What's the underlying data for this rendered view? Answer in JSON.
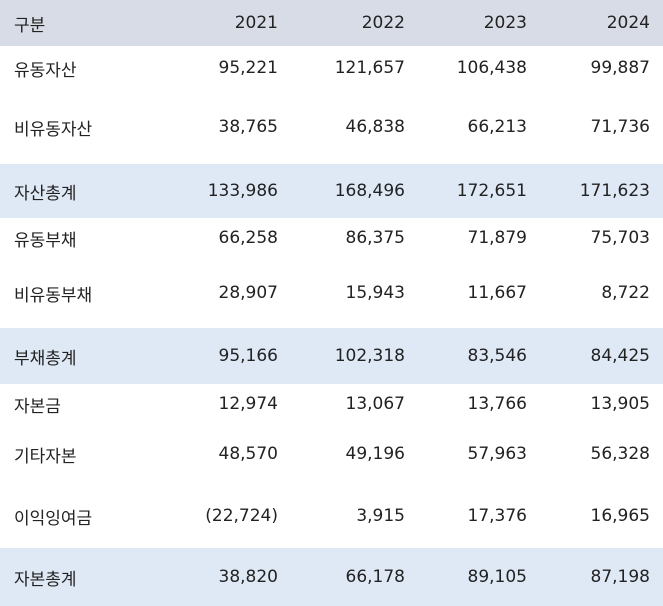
{
  "table": {
    "header": [
      "구분",
      "2021",
      "2022",
      "2023",
      "2024"
    ],
    "rows": [
      {
        "label": "유동자산",
        "values": [
          "95,221",
          "121,657",
          "106,438",
          "99,887"
        ],
        "total": false
      },
      {
        "label": "비유동자산",
        "values": [
          "38,765",
          "46,838",
          "66,213",
          "71,736"
        ],
        "total": false
      },
      {
        "label": "자산총계",
        "values": [
          "133,986",
          "168,496",
          "172,651",
          "171,623"
        ],
        "total": true
      },
      {
        "label": "유동부채",
        "values": [
          "66,258",
          "86,375",
          "71,879",
          "75,703"
        ],
        "total": false
      },
      {
        "label": "비유동부채",
        "values": [
          "28,907",
          "15,943",
          "11,667",
          "8,722"
        ],
        "total": false
      },
      {
        "label": "부채총계",
        "values": [
          "95,166",
          "102,318",
          "83,546",
          "84,425"
        ],
        "total": true
      },
      {
        "label": "자본금",
        "values": [
          "12,974",
          "13,067",
          "13,766",
          "13,905"
        ],
        "total": false
      },
      {
        "label": "기타자본",
        "values": [
          "48,570",
          "49,196",
          "57,963",
          "56,328"
        ],
        "total": false
      },
      {
        "label": "이익잉여금",
        "values": [
          "(22,724)",
          "3,915",
          "17,376",
          "16,965"
        ],
        "total": false
      },
      {
        "label": "자본총계",
        "values": [
          "38,820",
          "66,178",
          "89,105",
          "87,198"
        ],
        "total": true
      }
    ]
  },
  "colors": {
    "header_bg": "#d8dce6",
    "total_bg": "#dfe9f6"
  }
}
